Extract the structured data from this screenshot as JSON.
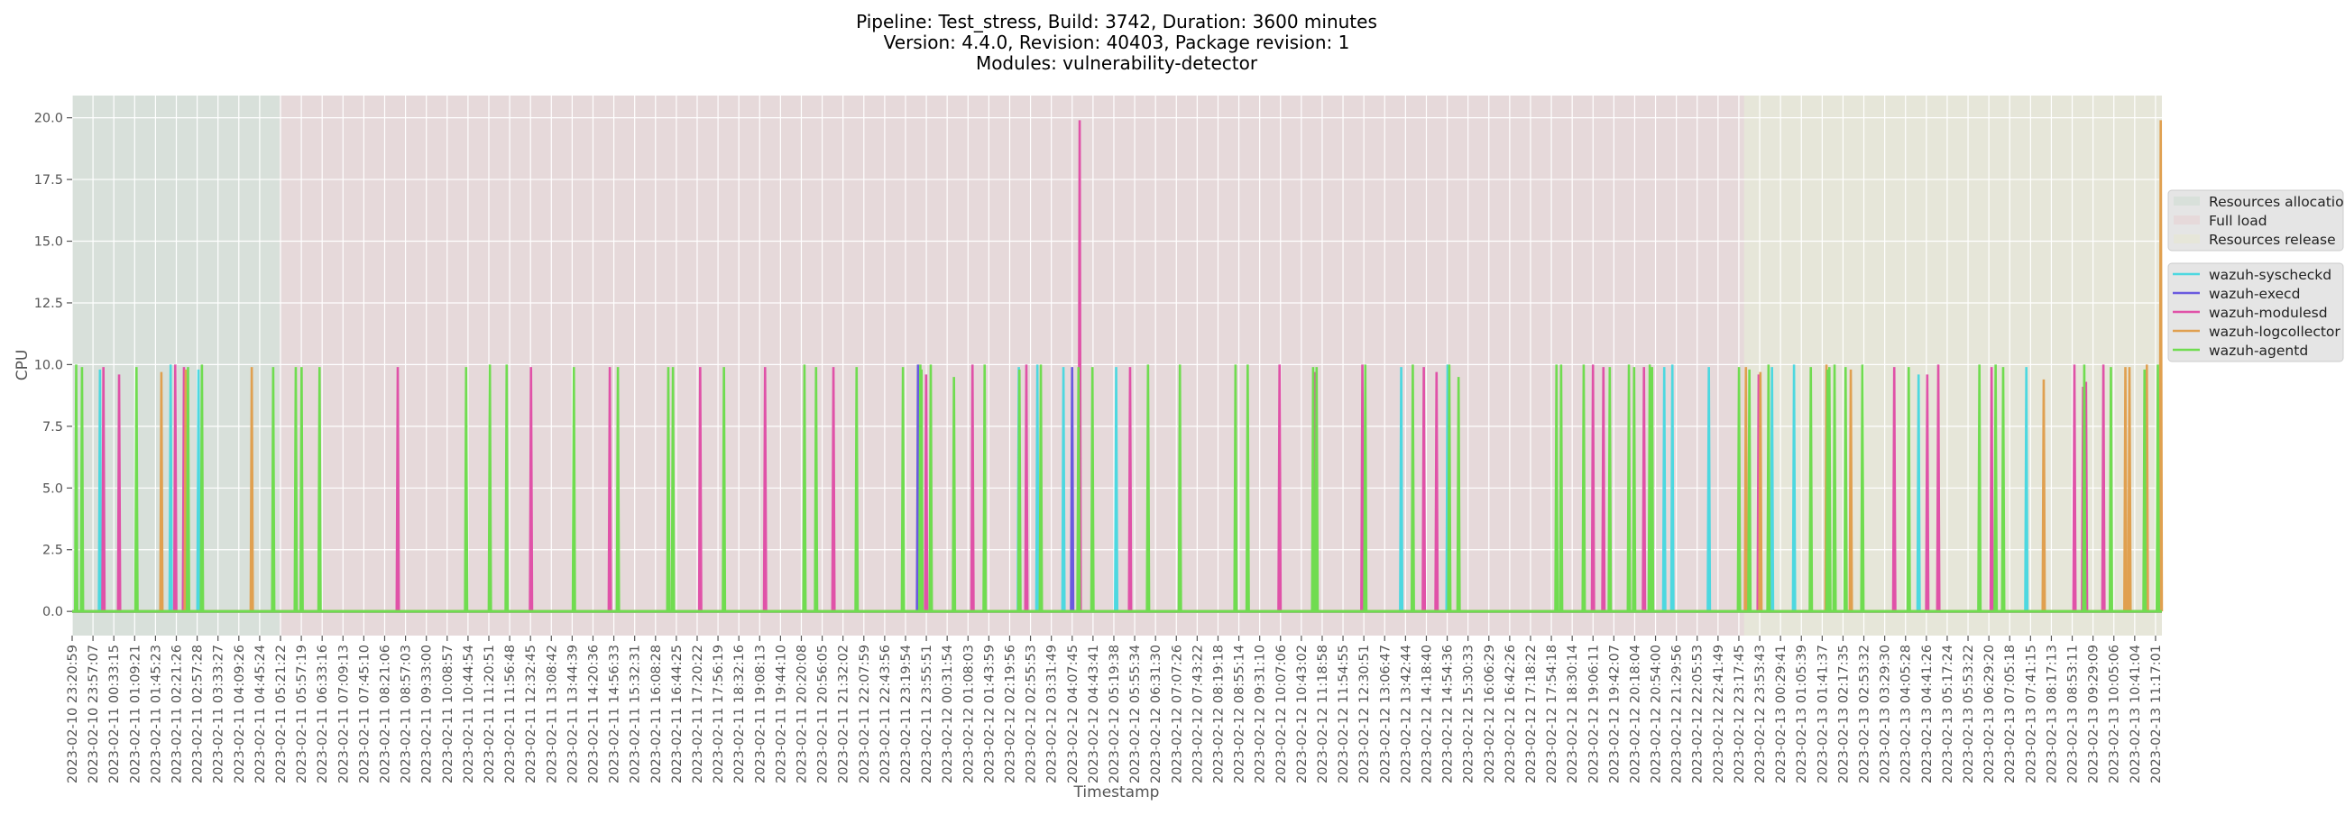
{
  "chart_data": {
    "type": "line",
    "title": [
      "Pipeline: Test_stress, Build: 3742, Duration: 3600 minutes",
      "Version: 4.4.0, Revision: 40403, Package revision: 1",
      "Modules: vulnerability-detector"
    ],
    "xlabel": "Timestamp",
    "ylabel": "CPU",
    "x_units": "minutes since 2023-02-10 23:20:59",
    "xlim": [
      0,
      3607
    ],
    "ylim": [
      -0.98,
      20.9
    ],
    "yticks": [
      0,
      2.5,
      5,
      7.5,
      10,
      12.5,
      15,
      17.5,
      20
    ],
    "ytick_labels": [
      "0.0",
      "2.5",
      "5.0",
      "7.5",
      "10.0",
      "12.5",
      "15.0",
      "17.5",
      "20.0"
    ],
    "xtick_step_minutes": 35.96,
    "xtick_labels": [
      "2023-02-10 23:20:59",
      "2023-02-10 23:57:07",
      "2023-02-11 00:33:15",
      "2023-02-11 01:09:21",
      "2023-02-11 01:45:23",
      "2023-02-11 02:21:26",
      "2023-02-11 02:57:28",
      "2023-02-11 03:33:27",
      "2023-02-11 04:09:26",
      "2023-02-11 04:45:24",
      "2023-02-11 05:21:22",
      "2023-02-11 05:57:19",
      "2023-02-11 06:33:16",
      "2023-02-11 07:09:13",
      "2023-02-11 07:45:10",
      "2023-02-11 08:21:06",
      "2023-02-11 08:57:03",
      "2023-02-11 09:33:00",
      "2023-02-11 10:08:57",
      "2023-02-11 10:44:54",
      "2023-02-11 11:20:51",
      "2023-02-11 11:56:48",
      "2023-02-11 12:32:45",
      "2023-02-11 13:08:42",
      "2023-02-11 13:44:39",
      "2023-02-11 14:20:36",
      "2023-02-11 14:56:33",
      "2023-02-11 15:32:31",
      "2023-02-11 16:08:28",
      "2023-02-11 16:44:25",
      "2023-02-11 17:20:22",
      "2023-02-11 17:56:19",
      "2023-02-11 18:32:16",
      "2023-02-11 19:08:13",
      "2023-02-11 19:44:10",
      "2023-02-11 20:20:08",
      "2023-02-11 20:56:05",
      "2023-02-11 21:32:02",
      "2023-02-11 22:07:59",
      "2023-02-11 22:43:56",
      "2023-02-11 23:19:54",
      "2023-02-11 23:55:51",
      "2023-02-12 00:31:54",
      "2023-02-12 01:08:03",
      "2023-02-12 01:43:59",
      "2023-02-12 02:19:56",
      "2023-02-12 02:55:53",
      "2023-02-12 03:31:49",
      "2023-02-12 04:07:45",
      "2023-02-12 04:43:41",
      "2023-02-12 05:19:38",
      "2023-02-12 05:55:34",
      "2023-02-12 06:31:30",
      "2023-02-12 07:07:26",
      "2023-02-12 07:43:22",
      "2023-02-12 08:19:18",
      "2023-02-12 08:55:14",
      "2023-02-12 09:31:10",
      "2023-02-12 10:07:06",
      "2023-02-12 10:43:02",
      "2023-02-12 11:18:58",
      "2023-02-12 11:54:55",
      "2023-02-12 12:30:51",
      "2023-02-12 13:06:47",
      "2023-02-12 13:42:44",
      "2023-02-12 14:18:40",
      "2023-02-12 14:54:36",
      "2023-02-12 15:30:33",
      "2023-02-12 16:06:29",
      "2023-02-12 16:42:26",
      "2023-02-12 17:18:22",
      "2023-02-12 17:54:18",
      "2023-02-12 18:30:14",
      "2023-02-12 19:06:11",
      "2023-02-12 19:42:07",
      "2023-02-12 20:18:04",
      "2023-02-12 20:54:00",
      "2023-02-12 21:29:56",
      "2023-02-12 22:05:53",
      "2023-02-12 22:41:49",
      "2023-02-12 23:17:45",
      "2023-02-12 23:53:43",
      "2023-02-13 00:29:41",
      "2023-02-13 01:05:39",
      "2023-02-13 01:41:37",
      "2023-02-13 02:17:35",
      "2023-02-13 02:53:32",
      "2023-02-13 03:29:30",
      "2023-02-13 04:05:28",
      "2023-02-13 04:41:26",
      "2023-02-13 05:17:24",
      "2023-02-13 05:53:22",
      "2023-02-13 06:29:20",
      "2023-02-13 07:05:18",
      "2023-02-13 07:41:15",
      "2023-02-13 08:17:13",
      "2023-02-13 08:53:11",
      "2023-02-13 09:29:09",
      "2023-02-13 10:05:06",
      "2023-02-13 10:41:04",
      "2023-02-13 11:17:01"
    ],
    "grid": true,
    "regions": [
      {
        "name": "Resources allocation",
        "start": 0,
        "end": 358,
        "color": "#d8e0da"
      },
      {
        "name": "Full load",
        "start": 358,
        "end": 2886,
        "color": "#e6d9da"
      },
      {
        "name": "Resources release",
        "start": 2886,
        "end": 3607,
        "color": "#e6e6d9"
      }
    ],
    "legend_placement": "right",
    "series": [
      {
        "name": "wazuh-syscheckd",
        "color": "#4dd8e0",
        "points": [
          [
            48,
            9.8
          ],
          [
            170,
            10
          ],
          [
            218,
            9.8
          ],
          [
            1634,
            9.9
          ],
          [
            1666,
            10
          ],
          [
            1711,
            9.9
          ],
          [
            1802,
            9.9
          ],
          [
            2294,
            9.9
          ],
          [
            2374,
            10
          ],
          [
            2748,
            9.9
          ],
          [
            2762,
            10
          ],
          [
            2825,
            9.9
          ],
          [
            2934,
            9.9
          ],
          [
            2972,
            10
          ],
          [
            3187,
            9.6
          ],
          [
            3373,
            9.9
          ]
        ]
      },
      {
        "name": "wazuh-execd",
        "color": "#6a5adf",
        "points": [
          [
            1460,
            10
          ],
          [
            1726,
            9.9
          ]
        ]
      },
      {
        "name": "wazuh-modulesd",
        "color": "#e052a8",
        "points": [
          [
            54,
            9.9
          ],
          [
            81,
            9.6
          ],
          [
            178,
            10
          ],
          [
            193,
            9.9
          ],
          [
            562,
            9.9
          ],
          [
            792,
            9.9
          ],
          [
            928,
            9.9
          ],
          [
            1084,
            9.9
          ],
          [
            1196,
            9.9
          ],
          [
            1314,
            9.9
          ],
          [
            1474,
            9.6
          ],
          [
            1554,
            10
          ],
          [
            1647,
            10
          ],
          [
            1739,
            19.9
          ],
          [
            1826,
            9.9
          ],
          [
            2084,
            10
          ],
          [
            2145,
            9.7
          ],
          [
            2227,
            10
          ],
          [
            2333,
            9.9
          ],
          [
            2355,
            9.7
          ],
          [
            2625,
            10
          ],
          [
            2643,
            9.9
          ],
          [
            2713,
            9.9
          ],
          [
            2911,
            9.6
          ],
          [
            3145,
            9.9
          ],
          [
            3202,
            9.6
          ],
          [
            3221,
            10
          ],
          [
            3313,
            9.9
          ],
          [
            3456,
            10
          ],
          [
            3471,
            9.1
          ],
          [
            3476,
            9.3
          ],
          [
            3506,
            10
          ]
        ]
      },
      {
        "name": "wazuh-logcollector",
        "color": "#e0a050",
        "points": [
          [
            154,
            9.7
          ],
          [
            196,
            9.8
          ],
          [
            310,
            9.9
          ],
          [
            2889,
            9.9
          ],
          [
            2914,
            9.7
          ],
          [
            3028,
            10
          ],
          [
            3070,
            9.8
          ],
          [
            3403,
            9.4
          ],
          [
            3544,
            9.9
          ],
          [
            3551,
            9.9
          ],
          [
            3581,
            10
          ],
          [
            3605,
            19.9
          ]
        ]
      },
      {
        "name": "wazuh-agentd",
        "color": "#70dc50",
        "points": [
          [
            7,
            10
          ],
          [
            17,
            9.9
          ],
          [
            111,
            9.9
          ],
          [
            200,
            9.9
          ],
          [
            224,
            10
          ],
          [
            347,
            9.9
          ],
          [
            386,
            9.9
          ],
          [
            396,
            9.9
          ],
          [
            427,
            9.9
          ],
          [
            680,
            9.9
          ],
          [
            721,
            10
          ],
          [
            750,
            10
          ],
          [
            866,
            9.9
          ],
          [
            942,
            9.9
          ],
          [
            1029,
            9.9
          ],
          [
            1037,
            9.9
          ],
          [
            1125,
            9.9
          ],
          [
            1264,
            10
          ],
          [
            1284,
            9.9
          ],
          [
            1354,
            9.9
          ],
          [
            1434,
            9.9
          ],
          [
            1464,
            10
          ],
          [
            1466,
            9.8
          ],
          [
            1482,
            10
          ],
          [
            1522,
            9.5
          ],
          [
            1575,
            10
          ],
          [
            1635,
            9.8
          ],
          [
            1672,
            10
          ],
          [
            1737,
            9.9
          ],
          [
            1761,
            9.9
          ],
          [
            1857,
            10
          ],
          [
            1912,
            10
          ],
          [
            2008,
            10
          ],
          [
            2029,
            10
          ],
          [
            2142,
            9.9
          ],
          [
            2148,
            9.9
          ],
          [
            2232,
            10
          ],
          [
            2314,
            10
          ],
          [
            2377,
            10
          ],
          [
            2393,
            9.5
          ],
          [
            2562,
            10
          ],
          [
            2570,
            10
          ],
          [
            2609,
            10
          ],
          [
            2654,
            9.9
          ],
          [
            2687,
            10
          ],
          [
            2696,
            9.9
          ],
          [
            2723,
            10
          ],
          [
            2727,
            9.9
          ],
          [
            2877,
            9.9
          ],
          [
            2895,
            9.8
          ],
          [
            2928,
            10
          ],
          [
            3001,
            9.9
          ],
          [
            3030,
            9.8
          ],
          [
            3033,
            9.9
          ],
          [
            3042,
            10
          ],
          [
            3061,
            9.9
          ],
          [
            3090,
            10
          ],
          [
            3170,
            9.9
          ],
          [
            3292,
            10
          ],
          [
            3320,
            10
          ],
          [
            3333,
            9.9
          ],
          [
            3473,
            10
          ],
          [
            3519,
            9.9
          ],
          [
            3577,
            9.8
          ],
          [
            3600,
            10
          ]
        ]
      }
    ]
  }
}
